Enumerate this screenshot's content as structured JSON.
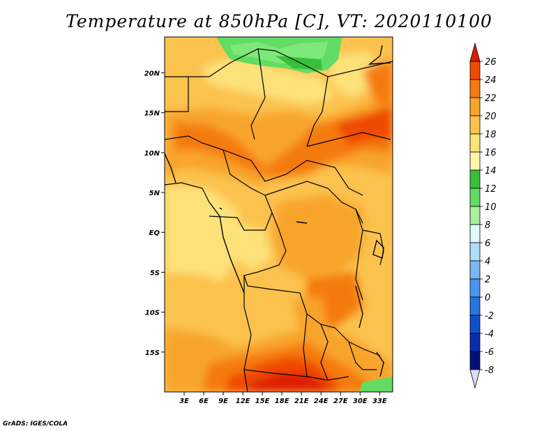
{
  "title": "Temperature at 850hPa [C], VT: 2020110100",
  "credit": "GrADS: IGES/COLA",
  "lat_labels": [
    "20N",
    "15N",
    "10N",
    "5N",
    "EQ",
    "5S",
    "10S",
    "15S"
  ],
  "lat_values": [
    20,
    15,
    10,
    5,
    0,
    -5,
    -10,
    -15
  ],
  "lon_labels": [
    "3E",
    "6E",
    "9E",
    "12E",
    "15E",
    "18E",
    "21E",
    "24E",
    "27E",
    "30E",
    "33E"
  ],
  "lon_values": [
    3,
    6,
    9,
    12,
    15,
    18,
    21,
    24,
    27,
    30,
    33
  ],
  "map_extent": {
    "lon": [
      0,
      35
    ],
    "lat": [
      -20,
      24.5
    ]
  },
  "colorbar": {
    "labels": [
      "26",
      "24",
      "22",
      "20",
      "18",
      "16",
      "14",
      "12",
      "10",
      "8",
      "6",
      "4",
      "2",
      "0",
      "-2",
      "-4",
      "-6",
      "-8"
    ],
    "colors": [
      "#dd1c00",
      "#f04a00",
      "#f57a10",
      "#f8a42a",
      "#fbc24e",
      "#fde27a",
      "#fff6a8",
      "#38c038",
      "#62dc62",
      "#a8f0a0",
      "#e0f8f8",
      "#b0dcf8",
      "#7ab8f4",
      "#4a96ee",
      "#2a74e0",
      "#1050c8",
      "#0a2cae",
      "#06107a",
      "#dcdcf8"
    ]
  }
}
